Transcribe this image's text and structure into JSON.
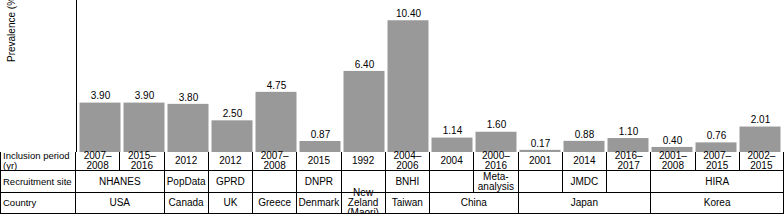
{
  "chart_data": {
    "type": "bar",
    "y_label": "Prevalence (%)",
    "x_label": "Inclusion period (yr)",
    "categories": [
      "2007–2008",
      "2015–2016",
      "2012",
      "2012",
      "2007–2008",
      "2015",
      "1992",
      "2004–2006",
      "2004",
      "2000–2016",
      "2001",
      "2014",
      "2016–2017",
      "2001–2008",
      "2007–2015",
      "2002–2015"
    ],
    "values": [
      3.9,
      3.9,
      3.8,
      2.5,
      4.75,
      0.87,
      6.4,
      10.4,
      1.14,
      1.6,
      0.17,
      0.88,
      1.1,
      0.4,
      0.76,
      2.01
    ],
    "value_labels": [
      "3.90",
      "3.90",
      "3.80",
      "2.50",
      "4.75",
      "0.87",
      "6.40",
      "10.40",
      "1.14",
      "1.60",
      "0.17",
      "0.88",
      "1.10",
      "0.40",
      "0.76",
      "2.01"
    ],
    "data_labels": true,
    "tick_labels": false,
    "color": "#999999",
    "ylim": [
      0,
      12
    ],
    "yticks": [],
    "rows": [
      {
        "label": "Recruitment site",
        "cells": [
          "NHANES",
          "NHANES",
          "PopData",
          "GPRD",
          null,
          "DNPR",
          null,
          "BNHI",
          null,
          "Meta-analysis",
          null,
          "JMDC",
          null,
          "HIRA",
          "HIRA",
          "HIRA"
        ]
      },
      {
        "label": "Country",
        "cells": [
          "USA",
          "USA",
          "Canada",
          "UK",
          "Greece",
          "Denmark",
          "New Zeland (Maori)",
          "Taiwan",
          "China",
          "China",
          "Japan",
          "Japan",
          "Japan",
          "Korea",
          "Korea",
          "Korea"
        ]
      }
    ]
  }
}
